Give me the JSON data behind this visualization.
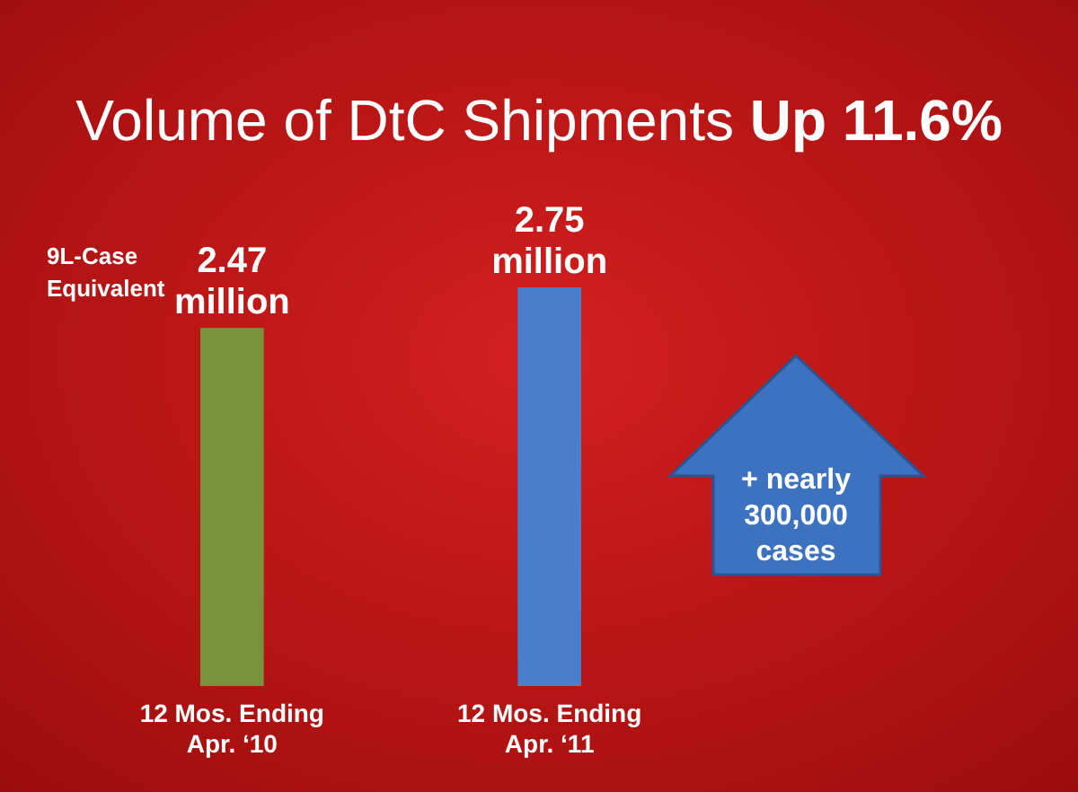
{
  "chart_data": {
    "type": "bar",
    "title": "Volume of DtC Shipments Up 11.6%",
    "ylabel": "9L-Case Equivalent",
    "categories": [
      "12 Mos. Ending\nApr. ‘10",
      "12 Mos. Ending\nApr. ‘11"
    ],
    "values": [
      2470000,
      2750000
    ],
    "colors": [
      "#77933c",
      "#4a7ec8"
    ],
    "value_labels": [
      "2.47\nmillion",
      "2.75\nmillion"
    ],
    "annotations": [
      "+ nearly\n300,000\ncases"
    ]
  }
}
